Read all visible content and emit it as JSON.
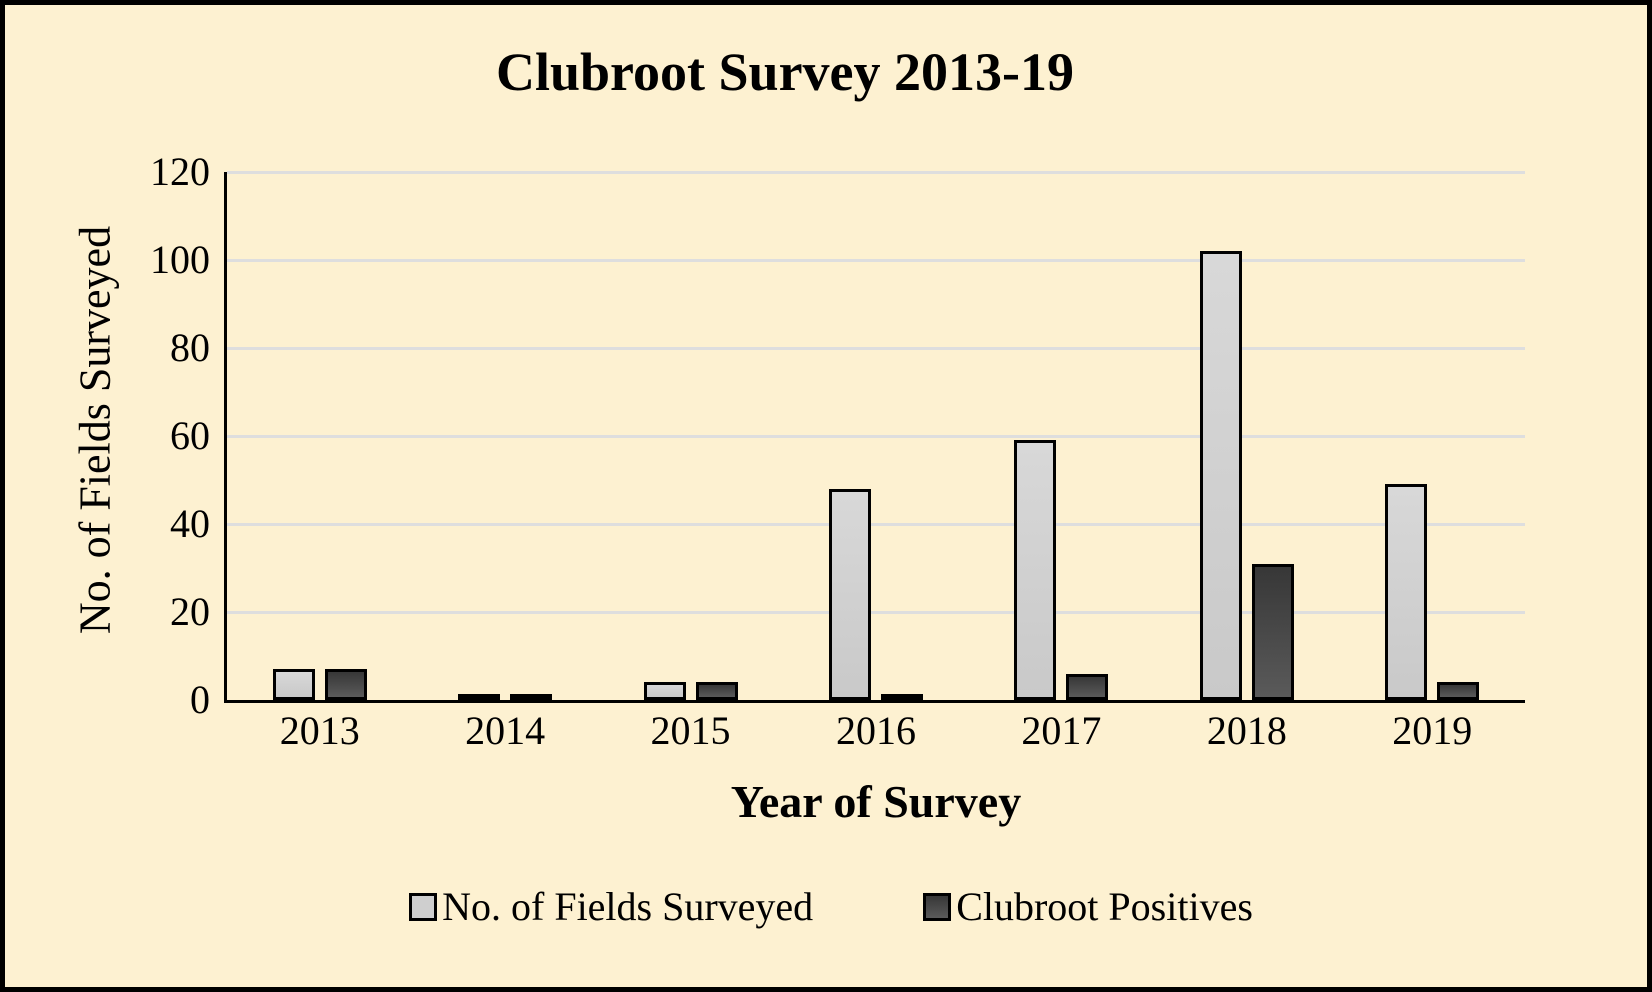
{
  "chart_data": {
    "type": "bar",
    "title": "Clubroot Survey 2013-19",
    "xlabel": "Year of Survey",
    "ylabel": "No. of Fields Surveyed",
    "categories": [
      "2013",
      "2014",
      "2015",
      "2016",
      "2017",
      "2018",
      "2019"
    ],
    "series": [
      {
        "name": "No. of Fields Surveyed",
        "values": [
          7,
          1,
          4,
          48,
          59,
          102,
          49
        ],
        "color": "#CFCFCF"
      },
      {
        "name": "Clubroot Positives",
        "values": [
          7,
          1,
          4,
          1,
          6,
          31,
          4
        ],
        "color": "#3C3C3C"
      }
    ],
    "ylim": [
      0,
      120
    ],
    "yticks": [
      0,
      20,
      40,
      60,
      80,
      100,
      120
    ],
    "grid": true,
    "legend_position": "bottom"
  },
  "colors": {
    "background": "#FDF1D1",
    "frame_border": "#000000",
    "gridline": "#DEDEDE",
    "axis": "#000000",
    "bar_surveyed": "#CFCFCF",
    "bar_positives": "#3C3C3C"
  }
}
